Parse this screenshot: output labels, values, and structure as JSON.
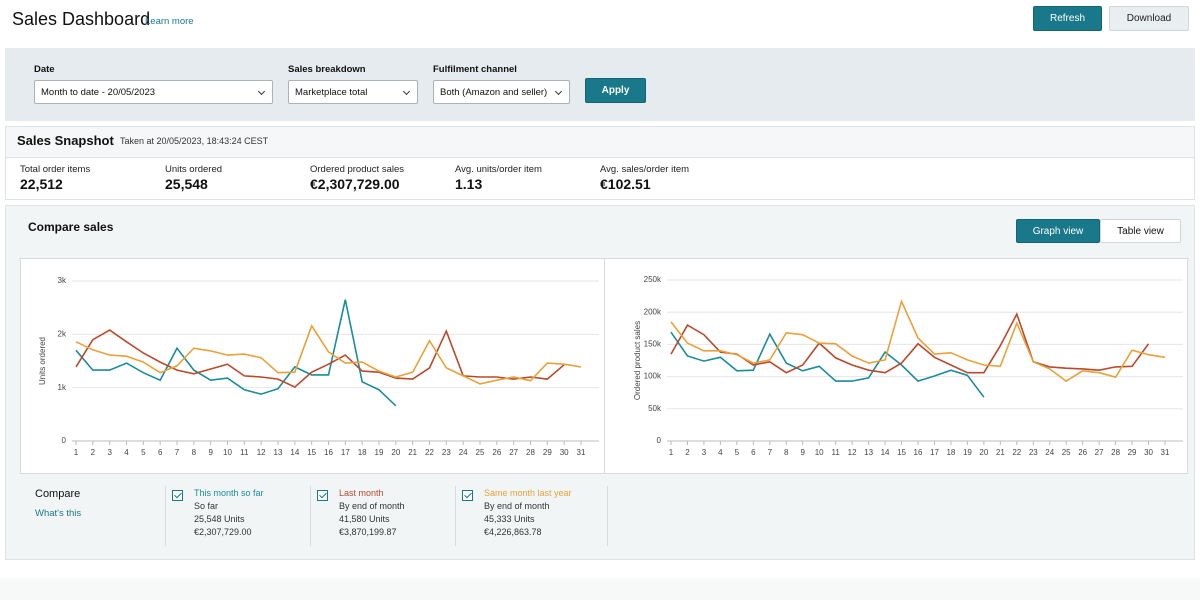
{
  "header": {
    "title": "Sales Dashboard",
    "learn_more": "Learn more",
    "buttons": [
      "Refresh",
      "Download"
    ]
  },
  "filters": {
    "items": [
      {
        "label": "Date",
        "value": "Month to date - 20/05/2023"
      },
      {
        "label": "Sales breakdown",
        "value": "Marketplace total"
      },
      {
        "label": "Fulfilment channel",
        "value": "Both (Amazon and seller)"
      }
    ],
    "apply": "Apply"
  },
  "snapshot": {
    "title": "Sales Snapshot",
    "taken": "Taken at 20/05/2023, 18:43:24 CEST",
    "metrics": [
      {
        "label": "Total order items",
        "value": "22,512"
      },
      {
        "label": "Units ordered",
        "value": "25,548"
      },
      {
        "label": "Ordered product sales",
        "value": "€2,307,729.00"
      },
      {
        "label": "Avg. units/order item",
        "value": "1.13"
      },
      {
        "label": "Avg. sales/order item",
        "value": "€102.51"
      }
    ]
  },
  "compare": {
    "title": "Compare sales",
    "views": [
      "Graph view",
      "Table view"
    ],
    "label": "Compare",
    "whats_this": "What's this",
    "items": [
      {
        "sub": "So far",
        "units": "25,548 Units",
        "sales": "€2,307,729.00"
      },
      {
        "sub": "By end of month",
        "units": "41,580 Units",
        "sales": "€3,870,199.87"
      },
      {
        "sub": "By end of month",
        "units": "45,333 Units",
        "sales": "€4,226,863.78"
      }
    ]
  },
  "chart_data": [
    {
      "type": "line",
      "y_label": "Units ordered",
      "x": [
        1,
        2,
        3,
        4,
        5,
        6,
        7,
        8,
        9,
        10,
        11,
        12,
        13,
        14,
        15,
        16,
        17,
        18,
        19,
        20,
        21,
        22,
        23,
        24,
        25,
        26,
        27,
        28,
        29,
        30,
        31
      ],
      "xlim": [
        1,
        31
      ],
      "xticks": [
        1,
        2,
        3,
        4,
        5,
        6,
        7,
        8,
        9,
        10,
        11,
        12,
        13,
        14,
        15,
        16,
        17,
        18,
        19,
        20,
        21,
        22,
        23,
        24,
        25,
        26,
        27,
        28,
        29,
        30,
        31
      ],
      "ylim": [
        0,
        3000
      ],
      "yticks": [
        0,
        {
          "value": 1000,
          "label": "1k"
        },
        {
          "value": 2000,
          "label": "2k"
        },
        {
          "value": 3000,
          "label": "3k"
        }
      ],
      "grid": true,
      "series": [
        {
          "name": "This month so far",
          "color": "#1a8c9c",
          "values": [
            1700,
            1330,
            1330,
            1460,
            1280,
            1140,
            1740,
            1330,
            1140,
            1180,
            960,
            880,
            980,
            1390,
            1240,
            1240,
            2650,
            1110,
            960,
            660,
            null,
            null,
            null,
            null,
            null,
            null,
            null,
            null,
            null,
            null,
            null
          ]
        },
        {
          "name": "Last month",
          "color": "#b94a2c",
          "values": [
            1390,
            1900,
            2080,
            1860,
            1650,
            1480,
            1330,
            1260,
            1350,
            1440,
            1220,
            1200,
            1160,
            1010,
            1290,
            1440,
            1610,
            1310,
            1290,
            1180,
            1160,
            1370,
            2060,
            1220,
            1200,
            1200,
            1160,
            1200,
            1160,
            1430,
            null
          ]
        },
        {
          "name": "Same month last year",
          "color": "#e8a23a",
          "values": [
            1860,
            1710,
            1610,
            1590,
            1480,
            1280,
            1410,
            1740,
            1690,
            1610,
            1630,
            1560,
            1280,
            1290,
            2160,
            1670,
            1460,
            1480,
            1310,
            1200,
            1290,
            1880,
            1370,
            1220,
            1070,
            1140,
            1200,
            1130,
            1460,
            1440,
            1390
          ]
        }
      ]
    },
    {
      "type": "line",
      "y_label": "Ordered product sales",
      "x": [
        1,
        2,
        3,
        4,
        5,
        6,
        7,
        8,
        9,
        10,
        11,
        12,
        13,
        14,
        15,
        16,
        17,
        18,
        19,
        20,
        21,
        22,
        23,
        24,
        25,
        26,
        27,
        28,
        29,
        30,
        31
      ],
      "xlim": [
        1,
        31
      ],
      "xticks": [
        1,
        2,
        3,
        4,
        5,
        6,
        7,
        8,
        9,
        10,
        11,
        12,
        13,
        14,
        15,
        16,
        17,
        18,
        19,
        20,
        21,
        22,
        23,
        24,
        25,
        26,
        27,
        28,
        29,
        30,
        31
      ],
      "ylim": [
        0,
        250000
      ],
      "yticks": [
        0,
        {
          "value": 50000,
          "label": "50k"
        },
        {
          "value": 100000,
          "label": "100k"
        },
        {
          "value": 150000,
          "label": "150k"
        },
        {
          "value": 200000,
          "label": "200k"
        },
        {
          "value": 250000,
          "label": "250k"
        }
      ],
      "grid": true,
      "series": [
        {
          "color": "#1a8c9c",
          "values": [
            169000,
            132000,
            124000,
            130000,
            109000,
            110000,
            166000,
            121000,
            109000,
            116000,
            93000,
            93000,
            98000,
            138000,
            118000,
            93000,
            101000,
            110000,
            102000,
            68000,
            null,
            null,
            null,
            null,
            null,
            null,
            null,
            null,
            null,
            null,
            null
          ]
        },
        {
          "color": "#b94a2c",
          "values": [
            135000,
            180000,
            165000,
            138000,
            135000,
            118000,
            123000,
            106000,
            118000,
            152000,
            129000,
            118000,
            110000,
            106000,
            121000,
            151000,
            130000,
            118000,
            106000,
            106000,
            148000,
            197000,
            123000,
            115000,
            113000,
            112000,
            110000,
            115000,
            116000,
            151000,
            null
          ]
        },
        {
          "color": "#e8a23a",
          "values": [
            185000,
            152000,
            140000,
            140000,
            134000,
            121000,
            126000,
            168000,
            165000,
            152000,
            151000,
            132000,
            121000,
            126000,
            217000,
            160000,
            135000,
            137000,
            126000,
            118000,
            116000,
            183000,
            123000,
            112000,
            93000,
            109000,
            106000,
            99000,
            141000,
            134000,
            130000
          ]
        }
      ]
    }
  ]
}
